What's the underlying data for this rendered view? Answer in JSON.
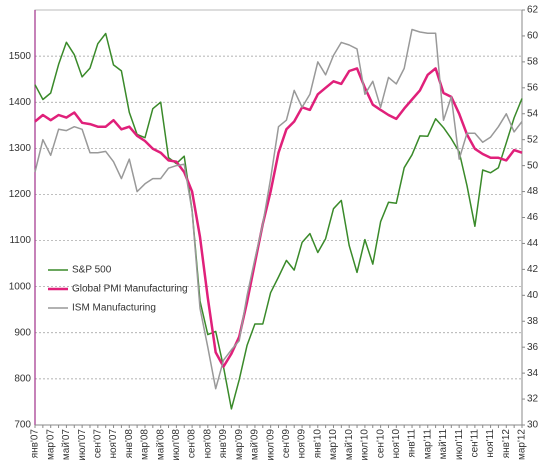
{
  "chart_data": {
    "type": "line",
    "categories": [
      "янв'07",
      null,
      "мар'07",
      null,
      "май'07",
      null,
      "июл'07",
      null,
      "сен'07",
      null,
      "ноя'07",
      null,
      "янв'08",
      null,
      "мар'08",
      null,
      "май'08",
      null,
      "июл'08",
      null,
      "сен'08",
      null,
      "ноя'08",
      null,
      "янв'09",
      null,
      "мар'09",
      null,
      "май'09",
      null,
      "июл'09",
      null,
      "сен'09",
      null,
      "ноя'09",
      null,
      "янв'10",
      null,
      "мар'10",
      null,
      "май'10",
      null,
      "июл'10",
      null,
      "сен'10",
      null,
      "ноя'10",
      null,
      "янв'11",
      null,
      "мар'11",
      null,
      "май'11",
      null,
      "июл'11",
      null,
      "сен'11",
      null,
      "ноя'11",
      null,
      "янв'12",
      null,
      "мар'12"
    ],
    "series": [
      {
        "name": "S&P 500",
        "color": "#3a8a2a",
        "axis": "y",
        "values": [
          1438,
          1406,
          1420,
          1482,
          1530,
          1503,
          1455,
          1474,
          1527,
          1549,
          1481,
          1468,
          1378,
          1330,
          1323,
          1386,
          1400,
          1280,
          1267,
          1283,
          1165,
          969,
          896,
          903,
          826,
          735,
          798,
          873,
          919,
          919,
          987,
          1021,
          1057,
          1036,
          1096,
          1115,
          1074,
          1104,
          1169,
          1187,
          1089,
          1031,
          1102,
          1049,
          1141,
          1183,
          1181,
          1258,
          1286,
          1327,
          1326,
          1364,
          1345,
          1321,
          1292,
          1219,
          1131,
          1253,
          1247,
          1258,
          1312,
          1366,
          1408
        ]
      },
      {
        "name": "Global PMI Manufacturing",
        "color": "#e0207a",
        "axis": "y2",
        "values": [
          53.4,
          53.9,
          53.5,
          53.9,
          53.7,
          54.1,
          53.3,
          53.2,
          53.0,
          53.0,
          53.5,
          52.8,
          53.0,
          52.3,
          51.9,
          51.3,
          51.0,
          50.4,
          50.3,
          49.5,
          48.0,
          44.5,
          39.8,
          35.6,
          34.5,
          35.5,
          36.8,
          39.5,
          42.5,
          45.5,
          48.0,
          51.0,
          52.8,
          53.4,
          54.5,
          54.3,
          55.5,
          56.0,
          56.5,
          56.3,
          57.3,
          57.5,
          56.0,
          54.7,
          54.3,
          53.9,
          53.6,
          54.4,
          55.1,
          55.8,
          57.0,
          57.5,
          55.6,
          55.3,
          54.0,
          52.4,
          51.3,
          50.9,
          50.6,
          50.6,
          50.4,
          51.2,
          51.0
        ]
      },
      {
        "name": "ISM Manufacturing",
        "color": "#999999",
        "axis": "y2",
        "values": [
          49.5,
          52.0,
          50.8,
          52.8,
          52.7,
          53.0,
          52.8,
          51.0,
          51.0,
          51.1,
          50.3,
          49.0,
          50.5,
          48.0,
          48.6,
          49.0,
          49.0,
          49.8,
          50.0,
          50.1,
          46.5,
          39.0,
          36.0,
          32.8,
          35.0,
          35.8,
          36.5,
          40.0,
          42.8,
          45.5,
          49.0,
          53.0,
          53.5,
          55.8,
          54.5,
          55.5,
          58.0,
          57.0,
          58.5,
          59.5,
          59.3,
          59.0,
          55.5,
          56.5,
          54.5,
          56.8,
          56.3,
          57.5,
          60.5,
          60.3,
          60.2,
          60.2,
          53.5,
          55.3,
          50.5,
          52.5,
          52.5,
          51.8,
          52.2,
          53.0,
          54.0,
          52.6,
          53.4
        ]
      }
    ],
    "ylim": [
      700,
      1600
    ],
    "yticks": [
      700,
      800,
      900,
      1000,
      1100,
      1200,
      1300,
      1400,
      1500
    ],
    "y2lim": [
      30,
      62
    ],
    "y2ticks": [
      30,
      32,
      34,
      36,
      38,
      40,
      42,
      44,
      46,
      48,
      50,
      52,
      54,
      56,
      58,
      60,
      62
    ],
    "grid": true,
    "legend": "left"
  }
}
